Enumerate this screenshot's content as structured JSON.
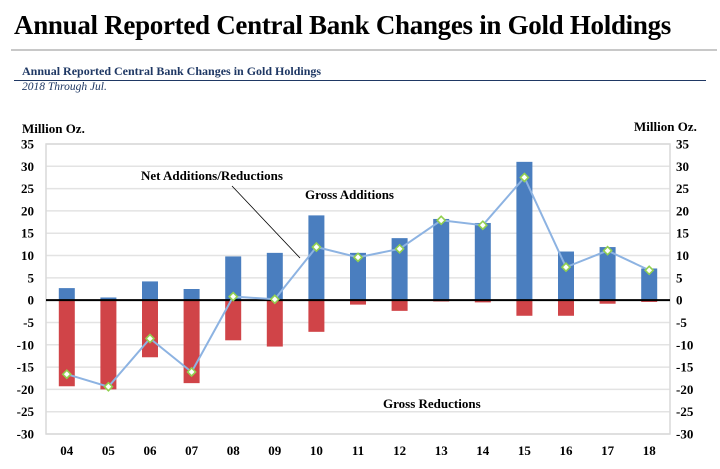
{
  "header": {
    "title": "Annual Reported Central Bank Changes in Gold Holdings",
    "chart_title": "Annual  Reported Central Bank Changes in Gold Holdings",
    "chart_subtitle": "2018 Through  Jul."
  },
  "colors": {
    "gross_additions": "#4a7ebf",
    "gross_reductions": "#d04448",
    "net_line": "#8db3e2",
    "net_marker": "#92d050"
  },
  "chart_data": {
    "type": "bar",
    "title": "Annual  Reported Central Bank Changes in Gold Holdings",
    "subtitle": "2018 Through  Jul.",
    "ylabel_left": "Million Oz.",
    "ylabel_right": "Million Oz.",
    "xlabel": "",
    "ylim": [
      -30,
      35
    ],
    "yticks": [
      35,
      30,
      25,
      20,
      15,
      10,
      5,
      0,
      -5,
      -10,
      -15,
      -20,
      -25,
      -30
    ],
    "grid": true,
    "categories": [
      "04",
      "05",
      "06",
      "07",
      "08",
      "09",
      "10",
      "11",
      "12",
      "13",
      "14",
      "15",
      "16",
      "17",
      "18"
    ],
    "series": [
      {
        "name": "Gross Additions",
        "kind": "bar",
        "values": [
          2.7,
          0.6,
          4.2,
          2.5,
          9.8,
          10.6,
          19.0,
          10.6,
          13.9,
          18.2,
          17.3,
          31.0,
          10.9,
          11.9,
          7.1
        ]
      },
      {
        "name": "Gross Reductions",
        "kind": "bar",
        "values": [
          -19.3,
          -20.0,
          -12.8,
          -18.6,
          -9.0,
          -10.4,
          -7.1,
          -1.0,
          -2.4,
          -0.3,
          -0.5,
          -3.5,
          -3.5,
          -0.8,
          -0.4
        ]
      },
      {
        "name": "Net Additions/Reductions",
        "kind": "line",
        "values": [
          -16.6,
          -19.4,
          -8.6,
          -16.1,
          0.8,
          0.2,
          11.9,
          9.6,
          11.5,
          17.9,
          16.8,
          27.5,
          7.4,
          11.1,
          6.7
        ]
      }
    ],
    "annotations": {
      "net": "Net Additions/Reductions",
      "additions": "Gross Additions",
      "reductions": "Gross Reductions"
    }
  }
}
